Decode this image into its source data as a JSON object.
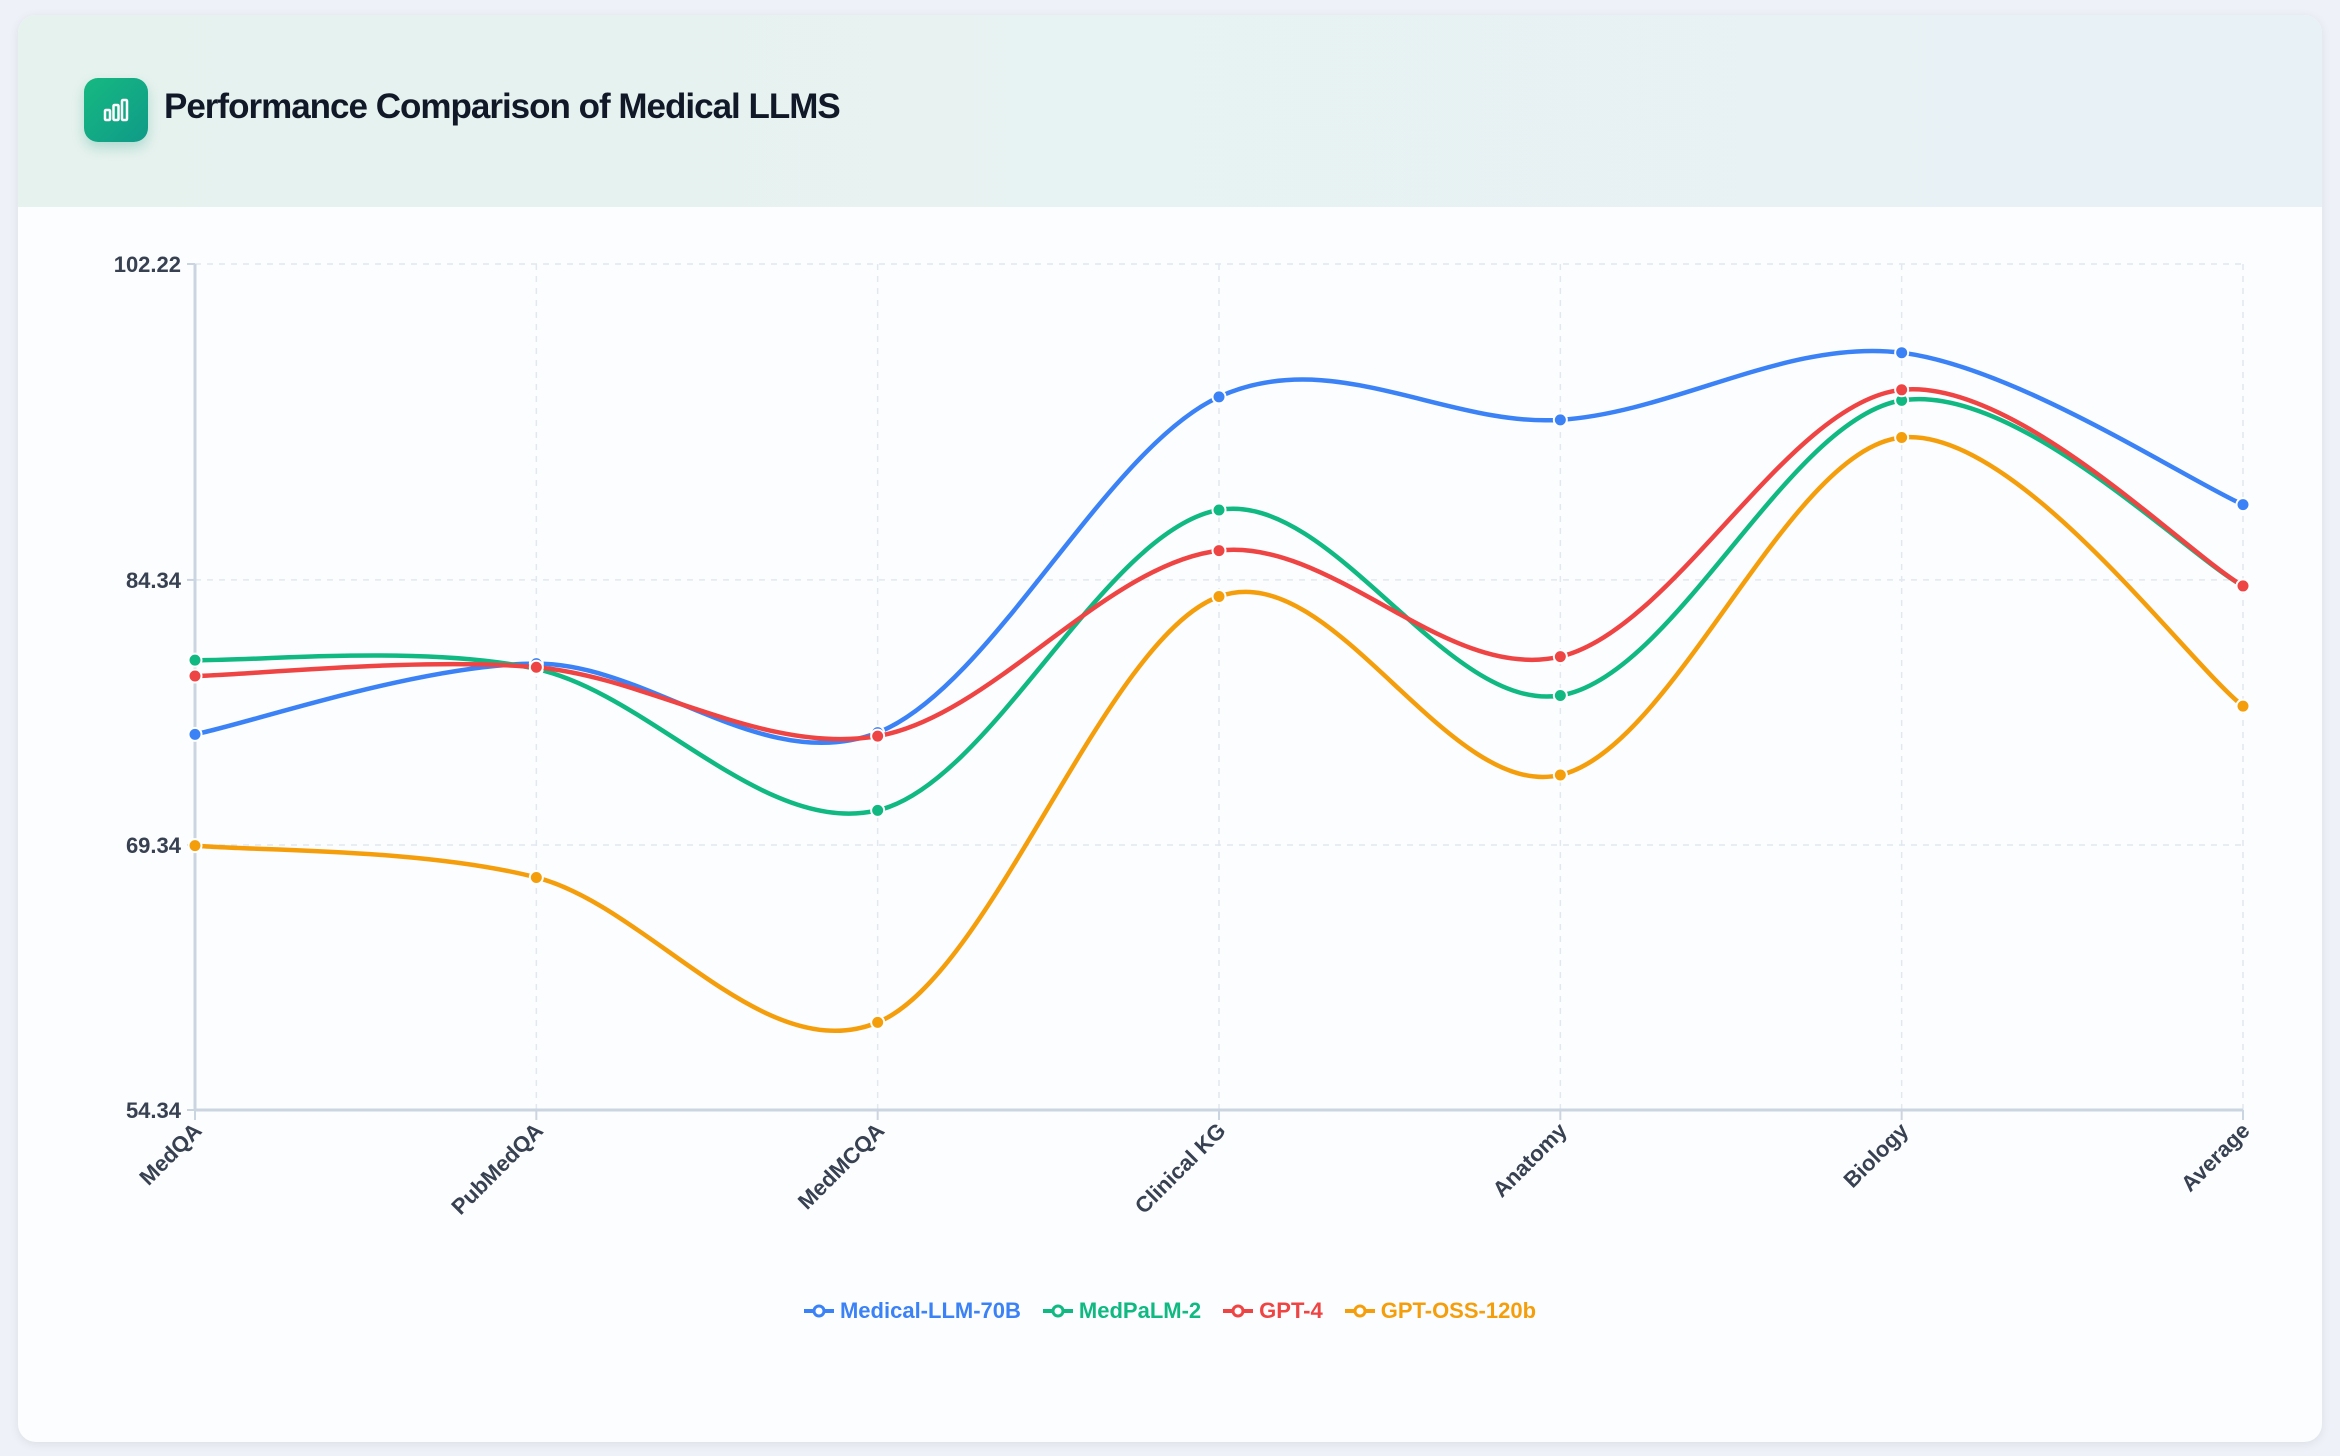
{
  "header": {
    "title": "Performance Comparison of Medical LLMS",
    "icon": "bar-chart-icon"
  },
  "chart_data": {
    "type": "line",
    "title": "Performance Comparison of Medical LLMS",
    "xlabel": "",
    "ylabel": "",
    "categories": [
      "MedQA",
      "PubMedQA",
      "MedMCQA",
      "Clinical KG",
      "Anatomy",
      "Biology",
      "Average"
    ],
    "ylim": [
      54.34,
      102.22
    ],
    "yticks": [
      "54.34",
      "69.34",
      "84.34",
      "102.22"
    ],
    "grid": true,
    "legend_position": "bottom",
    "smooth": true,
    "series": [
      {
        "name": "Medical-LLM-70B",
        "color": "#3b82f6",
        "values": [
          75.6,
          79.6,
          75.7,
          94.7,
          93.4,
          97.2,
          88.6
        ]
      },
      {
        "name": "MedPaLM-2",
        "color": "#10b981",
        "values": [
          79.8,
          79.3,
          71.3,
          88.3,
          77.8,
          94.5,
          84.0
        ]
      },
      {
        "name": "GPT-4",
        "color": "#ef4444",
        "values": [
          78.9,
          79.4,
          75.5,
          86.0,
          80.0,
          95.1,
          84.0
        ]
      },
      {
        "name": "GPT-OSS-120b",
        "color": "#f59e0b",
        "values": [
          69.3,
          67.5,
          59.3,
          83.4,
          73.3,
          92.4,
          77.2
        ]
      }
    ]
  }
}
